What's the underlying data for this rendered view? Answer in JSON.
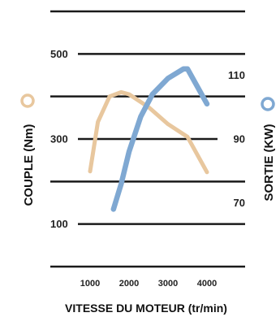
{
  "chart_data": {
    "type": "line",
    "xlabel": "VITESSE DU MOTEUR (tr/min)",
    "xticks": [
      1000,
      2000,
      3000,
      4000
    ],
    "xlim": [
      600,
      4400
    ],
    "grid": true,
    "left_axis": {
      "label": "COUPLE (Nm)",
      "ticks": [
        100,
        300,
        500
      ],
      "ylim": [
        0,
        600
      ],
      "color": "#E8C79E"
    },
    "right_axis": {
      "label": "SORTIE (KW)",
      "ticks": [
        70,
        90,
        110
      ],
      "ylim": [
        50,
        130
      ],
      "color": "#7FA8D2"
    },
    "series": [
      {
        "axis": "left",
        "color": "#E8C79E",
        "x": [
          1000,
          1200,
          1500,
          1800,
          2000,
          2500,
          3000,
          3500,
          4000
        ],
        "y": [
          224,
          340,
          400,
          410,
          405,
          375,
          335,
          305,
          222
        ]
      },
      {
        "axis": "right",
        "color": "#7FA8D2",
        "x": [
          1600,
          1800,
          2000,
          2300,
          2600,
          3000,
          3400,
          3500,
          4000
        ],
        "y": [
          68,
          76,
          86,
          97,
          104,
          109,
          112,
          112,
          101
        ]
      }
    ]
  }
}
